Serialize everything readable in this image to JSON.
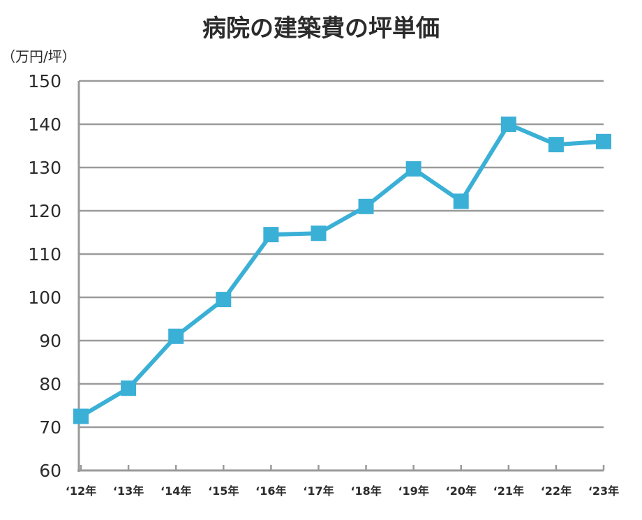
{
  "chart_data": {
    "type": "line",
    "title": "病院の建築費の坪単価",
    "ylabel": "（万円/坪）",
    "xlabel": "",
    "categories": [
      "‘12年",
      "‘13年",
      "‘14年",
      "‘15年",
      "‘16年",
      "‘17年",
      "‘18年",
      "‘19年",
      "‘20年",
      "‘21年",
      "‘22年",
      "‘23年"
    ],
    "series": [
      {
        "values": [
          72.5,
          79,
          91,
          99.5,
          114.5,
          114.8,
          121,
          129.7,
          122.2,
          140,
          135.3,
          136
        ]
      }
    ],
    "ylim": [
      60,
      150
    ],
    "yticks": [
      60,
      70,
      80,
      90,
      100,
      110,
      120,
      130,
      140,
      150
    ],
    "grid": true,
    "legend": "none",
    "marker": "square",
    "color": "#3bb0d6"
  }
}
